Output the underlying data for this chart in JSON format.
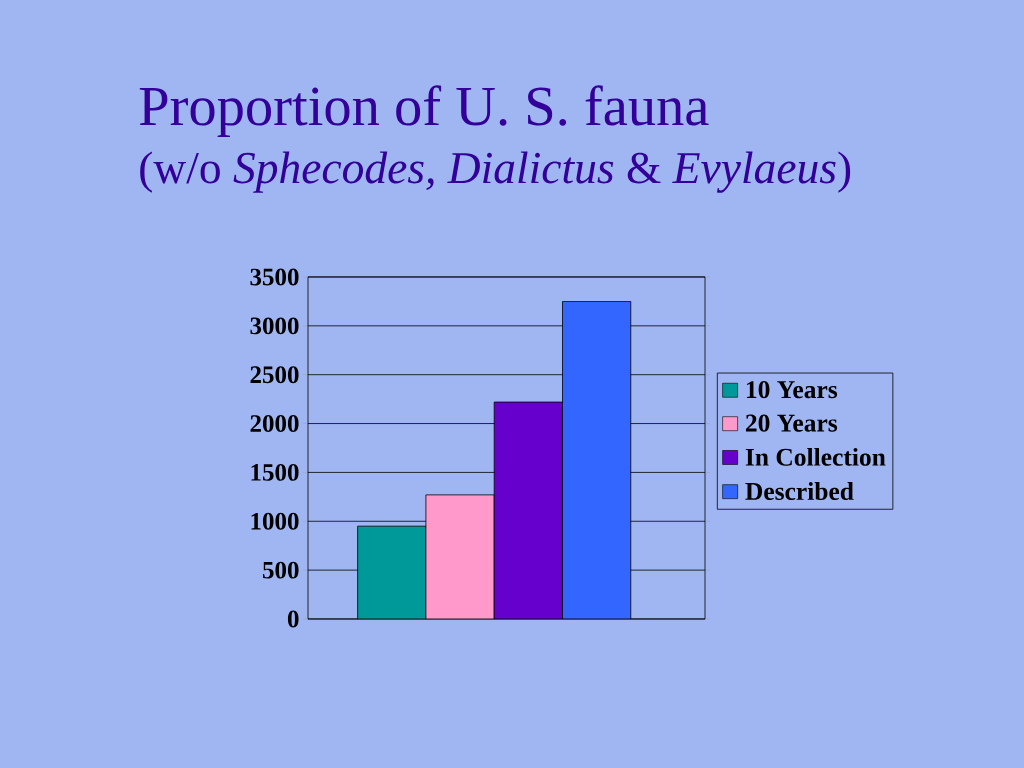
{
  "chart_data": {
    "type": "bar",
    "title": "Proportion of U. S. fauna",
    "subtitle": "(w/o *Sphecodes, Dialictus* & *Evylaeus*)",
    "categories": [
      null
    ],
    "series": [
      {
        "name": "10 Years",
        "color": "#009999",
        "values": [
          950
        ]
      },
      {
        "name": "20 Years",
        "color": "#ff99cc",
        "values": [
          1270
        ]
      },
      {
        "name": "In Collection",
        "color": "#6600cc",
        "values": [
          2220
        ]
      },
      {
        "name": "Described",
        "color": "#3366ff",
        "values": [
          3250
        ]
      }
    ],
    "ylim": [
      0,
      3500
    ],
    "yticks": [
      0,
      500,
      1000,
      1500,
      2000,
      2500,
      3000,
      3500
    ],
    "grid": "y",
    "legend": "right"
  }
}
